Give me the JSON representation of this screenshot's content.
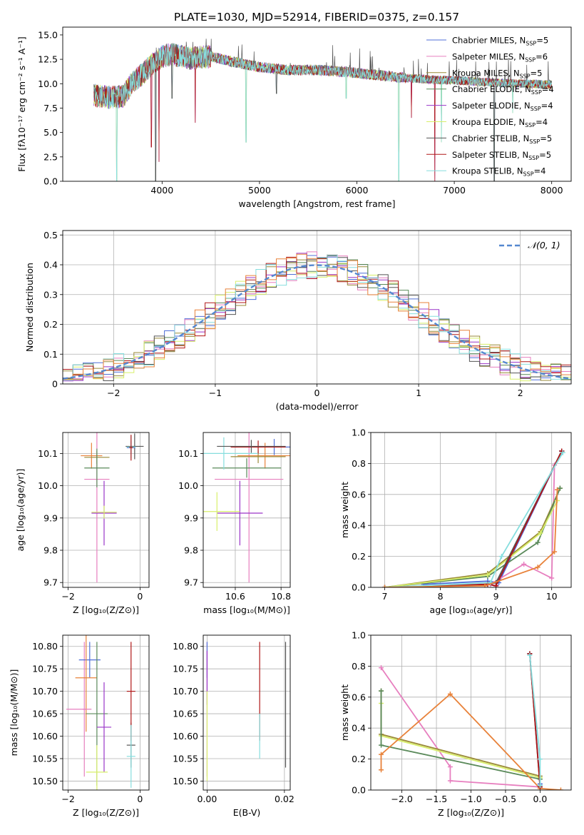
{
  "figure": {
    "title": "PLATE=1030, MJD=52914, FIBERID=0375, z=0.157",
    "colors": {
      "chabrier_miles": "#4f6fd8",
      "salpeter_miles": "#e77fbf",
      "kroupa_miles": "#9a8a38",
      "chabrier_elodie": "#5a8a5a",
      "salpeter_elodie": "#9a35c8",
      "kroupa_elodie": "#d8ef6a",
      "chabrier_stelib": "#555555",
      "salpeter_stelib": "#b01818",
      "kroupa_stelib": "#86dede",
      "orange": "#e8823a",
      "normal": "#5588d0"
    }
  },
  "chart_data": [
    {
      "id": "spectrum",
      "type": "line",
      "xlabel": "wavelength [Angstrom, rest frame]",
      "ylabel": "Flux [fλ10⁻¹⁷ erg cm⁻² s⁻¹ A⁻¹]",
      "xlim": [
        2980,
        8200
      ],
      "ylim": [
        0,
        15.8
      ],
      "xticks": [
        4000,
        5000,
        6000,
        7000,
        8000
      ],
      "yticks": [
        0.0,
        2.5,
        5.0,
        7.5,
        10.0,
        12.5,
        15.0
      ],
      "legend_position": "top-right",
      "anchors": [
        [
          3300,
          8.8
        ],
        [
          3450,
          8.6
        ],
        [
          3600,
          8.7
        ],
        [
          3700,
          10.2
        ],
        [
          3800,
          11.0
        ],
        [
          3900,
          12.0
        ],
        [
          4000,
          12.8
        ],
        [
          4100,
          13.0
        ],
        [
          4300,
          12.6
        ],
        [
          4500,
          12.8
        ],
        [
          4700,
          12.3
        ],
        [
          5000,
          11.7
        ],
        [
          5300,
          11.4
        ],
        [
          5600,
          11.4
        ],
        [
          5900,
          11.2
        ],
        [
          6200,
          10.9
        ],
        [
          6500,
          10.6
        ],
        [
          6800,
          10.4
        ],
        [
          7100,
          10.3
        ],
        [
          7400,
          10.1
        ],
        [
          7700,
          10.0
        ],
        [
          8000,
          9.9
        ]
      ],
      "series": [
        {
          "name": "Chabrier MILES, N$_{SSP}$=5",
          "label": "Chabrier MILES, N",
          "sub": "SSP",
          "suffix": "=5",
          "color_key": "chabrier_miles"
        },
        {
          "name": "Salpeter MILES, N$_{SSP}$=6",
          "label": "Salpeter MILES, N",
          "sub": "SSP",
          "suffix": "=6",
          "color_key": "salpeter_miles"
        },
        {
          "name": "Kroupa MILES, N$_{SSP}$=5",
          "label": "Kroupa MILES, N",
          "sub": "SSP",
          "suffix": "=5",
          "color_key": "kroupa_miles"
        },
        {
          "name": "Chabrier ELODIE, N$_{SSP}$=4",
          "label": "Chabrier ELODIE, N",
          "sub": "SSP",
          "suffix": "=4",
          "color_key": "chabrier_elodie"
        },
        {
          "name": "Salpeter ELODIE, N$_{SSP}$=4",
          "label": "Salpeter ELODIE, N",
          "sub": "SSP",
          "suffix": "=4",
          "color_key": "salpeter_elodie"
        },
        {
          "name": "Kroupa ELODIE, N$_{SSP}$=4",
          "label": "Kroupa ELODIE, N",
          "sub": "SSP",
          "suffix": "=4",
          "color_key": "kroupa_elodie"
        },
        {
          "name": "Chabrier STELIB, N$_{SSP}$=5",
          "label": "Chabrier STELIB, N",
          "sub": "SSP",
          "suffix": "=5",
          "color_key": "chabrier_stelib"
        },
        {
          "name": "Salpeter STELIB, N$_{SSP}$=5",
          "label": "Salpeter STELIB, N",
          "sub": "SSP",
          "suffix": "=5",
          "color_key": "salpeter_stelib"
        },
        {
          "name": "Kroupa STELIB, N$_{SSP}$=4",
          "label": "Kroupa STELIB, N",
          "sub": "SSP",
          "suffix": "=4",
          "color_key": "kroupa_stelib"
        }
      ],
      "dips": [
        [
          3535,
          0.0
        ],
        [
          3890,
          3.5
        ],
        [
          3933,
          0.0
        ],
        [
          3968,
          2.0
        ],
        [
          4101,
          8.5
        ],
        [
          4340,
          6.0
        ],
        [
          4861,
          4.0
        ],
        [
          5175,
          9.0
        ],
        [
          5890,
          8.5
        ],
        [
          6430,
          0.0
        ],
        [
          6560,
          6.5
        ],
        [
          6800,
          0.0
        ],
        [
          6868,
          4.0
        ],
        [
          7410,
          0.0
        ],
        [
          7600,
          7.0
        ]
      ]
    },
    {
      "id": "residuals",
      "type": "histogram",
      "xlabel": "(data-model)/error",
      "ylabel": "Normed distribution",
      "xlim": [
        -2.5,
        2.5
      ],
      "ylim": [
        0,
        0.515
      ],
      "xticks": [
        -2,
        -1,
        0,
        1,
        2
      ],
      "yticks": [
        0.0,
        0.1,
        0.2,
        0.3,
        0.4,
        0.5
      ],
      "bin_width": 0.1,
      "legend_label": "𝒩(0, 1)",
      "legend_position": "top-right",
      "series_colors": [
        "chabrier_miles",
        "salpeter_miles",
        "kroupa_miles",
        "chabrier_elodie",
        "salpeter_elodie",
        "kroupa_elodie",
        "chabrier_stelib",
        "salpeter_stelib",
        "kroupa_stelib",
        "orange"
      ],
      "reference_curve": "gaussian(0,1)"
    },
    {
      "id": "age-vs-Z",
      "type": "errorbar",
      "xlabel": "Z [log₁₀(Z/Z⊙)]",
      "ylabel": "age  [log₁₀(age/yr)]",
      "xlim": [
        -2.15,
        0.25
      ],
      "ylim": [
        9.685,
        10.165
      ],
      "xticks": [
        -2,
        0
      ],
      "yticks": [
        9.7,
        9.8,
        9.9,
        10.0,
        10.1
      ],
      "points": [
        {
          "x": -1.2,
          "xerr": 0.35,
          "y": 10.02,
          "yerr": 0.32,
          "color_key": "salpeter_miles"
        },
        {
          "x": -1.35,
          "xerr": 0.3,
          "y": 10.093,
          "yerr": 0.04,
          "color_key": "orange"
        },
        {
          "x": -1.2,
          "xerr": 0.35,
          "y": 10.088,
          "yerr": 0.02,
          "color_key": "kroupa_miles"
        },
        {
          "x": -1.2,
          "xerr": 0.35,
          "y": 10.055,
          "yerr": 0.06,
          "color_key": "chabrier_elodie"
        },
        {
          "x": -1.0,
          "xerr": 0.35,
          "y": 9.915,
          "yerr": 0.1,
          "color_key": "salpeter_elodie"
        },
        {
          "x": -1.0,
          "xerr": 0.35,
          "y": 9.918,
          "yerr": 0.02,
          "color_key": "kroupa_elodie"
        },
        {
          "x": -0.15,
          "xerr": 0.25,
          "y": 10.122,
          "yerr": 0.04,
          "color_key": "chabrier_stelib"
        },
        {
          "x": -0.25,
          "xerr": 0.12,
          "y": 10.118,
          "yerr": 0.02,
          "color_key": "chabrier_miles"
        },
        {
          "x": -0.25,
          "xerr": 0.12,
          "y": 10.12,
          "yerr": 0.035,
          "color_key": "kroupa_stelib"
        },
        {
          "x": -0.25,
          "xerr": 0.05,
          "y": 10.118,
          "yerr": 0.04,
          "color_key": "salpeter_stelib"
        }
      ]
    },
    {
      "id": "age-vs-mass",
      "type": "errorbar",
      "xlabel": "mass [log₁₀(M/M⊙)]",
      "ylabel": "",
      "xlim": [
        10.46,
        10.84
      ],
      "ylim": [
        9.685,
        10.165
      ],
      "xticks": [
        10.6,
        10.8
      ],
      "yticks": [
        9.7,
        9.8,
        9.9,
        10.0,
        10.1
      ],
      "points": [
        {
          "x": 10.66,
          "xerr": 0.15,
          "y": 10.02,
          "yerr": 0.32,
          "color_key": "salpeter_miles"
        },
        {
          "x": 10.77,
          "xerr": 0.12,
          "y": 10.12,
          "yerr": 0.025,
          "color_key": "chabrier_miles"
        },
        {
          "x": 10.73,
          "xerr": 0.12,
          "y": 10.093,
          "yerr": 0.04,
          "color_key": "orange"
        },
        {
          "x": 10.7,
          "xerr": 0.12,
          "y": 10.09,
          "yerr": 0.02,
          "color_key": "kroupa_miles"
        },
        {
          "x": 10.65,
          "xerr": 0.15,
          "y": 10.055,
          "yerr": 0.03,
          "color_key": "chabrier_elodie"
        },
        {
          "x": 10.62,
          "xerr": 0.1,
          "y": 9.915,
          "yerr": 0.1,
          "color_key": "salpeter_elodie"
        },
        {
          "x": 10.52,
          "xerr": 0.1,
          "y": 9.92,
          "yerr": 0.06,
          "color_key": "kroupa_elodie"
        },
        {
          "x": 10.55,
          "xerr": 0.15,
          "y": 10.1,
          "yerr": 0.05,
          "color_key": "kroupa_stelib"
        },
        {
          "x": 10.7,
          "xerr": 0.12,
          "y": 10.12,
          "yerr": 0.02,
          "color_key": "salpeter_stelib"
        },
        {
          "x": 10.67,
          "xerr": 0.15,
          "y": 10.122,
          "yerr": 0.02,
          "color_key": "chabrier_stelib"
        }
      ]
    },
    {
      "id": "massweight-vs-age",
      "type": "line",
      "xlabel": "age  [log₁₀(age/yr)]",
      "ylabel": "mass weight",
      "xlim": [
        6.75,
        10.35
      ],
      "ylim": [
        0,
        1.0
      ],
      "xticks": [
        7,
        8,
        9,
        10
      ],
      "yticks": [
        0.0,
        0.2,
        0.4,
        0.6,
        0.8,
        1.0
      ],
      "series": [
        {
          "color_key": "chabrier_miles",
          "x": [
            7.7,
            8.85,
            9.05,
            10.18
          ],
          "y": [
            0.02,
            0.04,
            0.03,
            0.88
          ]
        },
        {
          "color_key": "salpeter_miles",
          "x": [
            7.0,
            8.9,
            9.5,
            10.0,
            10.05
          ],
          "y": [
            0.0,
            0.02,
            0.15,
            0.06,
            0.79
          ]
        },
        {
          "color_key": "kroupa_miles",
          "x": [
            7.0,
            8.85,
            9.8,
            10.15
          ],
          "y": [
            0.0,
            0.09,
            0.36,
            0.64
          ]
        },
        {
          "color_key": "chabrier_elodie",
          "x": [
            7.0,
            8.85,
            9.75,
            10.15
          ],
          "y": [
            0.0,
            0.07,
            0.29,
            0.64
          ]
        },
        {
          "color_key": "salpeter_elodie",
          "x": [
            7.0,
            8.85,
            9.0,
            10.18
          ],
          "y": [
            0.0,
            0.02,
            0.01,
            0.88
          ]
        },
        {
          "color_key": "kroupa_elodie",
          "x": [
            7.0,
            8.85,
            9.8,
            10.1
          ],
          "y": [
            0.0,
            0.08,
            0.35,
            0.56
          ]
        },
        {
          "color_key": "chabrier_stelib",
          "x": [
            7.0,
            8.85,
            9.0,
            10.18
          ],
          "y": [
            0.0,
            0.02,
            0.03,
            0.88
          ]
        },
        {
          "color_key": "salpeter_stelib",
          "x": [
            7.0,
            8.85,
            9.0,
            10.18
          ],
          "y": [
            0.0,
            0.02,
            0.01,
            0.88
          ]
        },
        {
          "color_key": "kroupa_stelib",
          "x": [
            7.0,
            8.9,
            9.1,
            10.2
          ],
          "y": [
            0.0,
            0.03,
            0.2,
            0.87
          ]
        },
        {
          "color_key": "orange",
          "x": [
            7.0,
            8.8,
            9.75,
            10.05,
            10.1
          ],
          "y": [
            0.0,
            0.01,
            0.13,
            0.23,
            0.63
          ]
        }
      ]
    },
    {
      "id": "mass-vs-Z",
      "type": "errorbar",
      "xlabel": "Z [log₁₀(Z/Z⊙)]",
      "ylabel": "mass [log₁₀(M/M⊙)]",
      "xlim": [
        -2.15,
        0.25
      ],
      "ylim": [
        10.48,
        10.825
      ],
      "xticks": [
        -2,
        0
      ],
      "yticks": [
        10.5,
        10.55,
        10.6,
        10.65,
        10.7,
        10.75,
        10.8
      ],
      "points": [
        {
          "x": -1.55,
          "xerr": 0.05,
          "y": 10.66,
          "yerr": 0.15,
          "color_key": "salpeter_miles"
        },
        {
          "x": -1.4,
          "xerr": 0.3,
          "y": 10.77,
          "yerr": 0.04,
          "color_key": "chabrier_miles"
        },
        {
          "x": -1.5,
          "xerr": 0.3,
          "y": 10.73,
          "yerr": 0.12,
          "color_key": "orange"
        },
        {
          "x": -1.2,
          "xerr": 0.3,
          "y": 10.65,
          "yerr": 0.16,
          "color_key": "chabrier_elodie"
        },
        {
          "x": -1.0,
          "xerr": 0.2,
          "y": 10.62,
          "yerr": 0.1,
          "color_key": "salpeter_elodie"
        },
        {
          "x": -1.2,
          "xerr": 0.3,
          "y": 10.52,
          "yerr": 0.06,
          "color_key": "kroupa_elodie"
        },
        {
          "x": -1.7,
          "xerr": 0.35,
          "y": 10.66,
          "yerr": 0.0,
          "color_key": "salpeter_miles"
        },
        {
          "x": -0.25,
          "xerr": 0.12,
          "y": 10.58,
          "yerr": 0.05,
          "color_key": "chabrier_stelib"
        },
        {
          "x": -0.25,
          "xerr": 0.12,
          "y": 10.7,
          "yerr": 0.11,
          "color_key": "salpeter_stelib"
        },
        {
          "x": -0.25,
          "xerr": 0.12,
          "y": 10.555,
          "yerr": 0.07,
          "color_key": "kroupa_stelib"
        }
      ]
    },
    {
      "id": "mass-vs-ebv",
      "type": "errorbar",
      "xlabel": "E(B-V)",
      "ylabel": "",
      "xlim": [
        -0.001,
        0.0215
      ],
      "ylim": [
        10.48,
        10.825
      ],
      "xticks": [
        0.0,
        0.02
      ],
      "yticks": [
        10.5,
        10.55,
        10.6,
        10.65,
        10.7,
        10.75,
        10.8
      ],
      "points": [
        {
          "x": 0.0,
          "xerr": 0,
          "y": 10.66,
          "yerr": 0.15,
          "color_key": "salpeter_miles"
        },
        {
          "x": 0.0,
          "xerr": 0,
          "y": 10.77,
          "yerr": 0.04,
          "color_key": "chabrier_miles"
        },
        {
          "x": 0.0,
          "xerr": 0,
          "y": 10.73,
          "yerr": 0.06,
          "color_key": "salpeter_elodie"
        },
        {
          "x": 0.0,
          "xerr": 0,
          "y": 10.6,
          "yerr": 0.1,
          "color_key": "kroupa_elodie"
        },
        {
          "x": 0.0136,
          "xerr": 0,
          "y": 10.7,
          "yerr": 0.11,
          "color_key": "salpeter_stelib"
        },
        {
          "x": 0.0136,
          "xerr": 0,
          "y": 10.6,
          "yerr": 0.05,
          "color_key": "kroupa_stelib"
        },
        {
          "x": 0.0203,
          "xerr": 0,
          "y": 10.67,
          "yerr": 0.14,
          "color_key": "chabrier_stelib"
        }
      ]
    },
    {
      "id": "massweight-vs-Z",
      "type": "line",
      "xlabel": "Z [log₁₀(Z/Z⊙)]",
      "ylabel": "mass weight",
      "xlim": [
        -2.45,
        0.45
      ],
      "ylim": [
        0,
        1.0
      ],
      "xticks": [
        -2.0,
        -1.5,
        -1.0,
        -0.5,
        0.0
      ],
      "tick_labels": [
        "−2.0",
        "−1.5",
        "−1.0",
        "−0.5",
        "0.0"
      ],
      "yticks": [
        0.0,
        0.2,
        0.4,
        0.6,
        0.8,
        1.0
      ],
      "series": [
        {
          "color_key": "salpeter_miles",
          "x": [
            -2.3,
            -1.3,
            -1.3,
            0.0
          ],
          "y": [
            0.79,
            0.15,
            0.06,
            0.02
          ]
        },
        {
          "color_key": "kroupa_elodie",
          "x": [
            -2.3,
            -2.3,
            0.0
          ],
          "y": [
            0.56,
            0.35,
            0.08
          ]
        },
        {
          "color_key": "kroupa_miles",
          "x": [
            -2.3,
            -2.3,
            0.0
          ],
          "y": [
            0.64,
            0.36,
            0.09
          ]
        },
        {
          "color_key": "chabrier_elodie",
          "x": [
            -2.3,
            -2.3,
            0.0
          ],
          "y": [
            0.64,
            0.29,
            0.07
          ]
        },
        {
          "color_key": "orange",
          "x": [
            -2.3,
            -2.3,
            -1.3,
            0.0,
            0.3
          ],
          "y": [
            0.13,
            0.23,
            0.62,
            0.01,
            0.0
          ]
        },
        {
          "color_key": "chabrier_miles",
          "x": [
            -0.15,
            0.0,
            0.0
          ],
          "y": [
            0.88,
            0.04,
            0.03
          ]
        },
        {
          "color_key": "chabrier_stelib",
          "x": [
            -0.15,
            0.0
          ],
          "y": [
            0.88,
            0.02
          ]
        },
        {
          "color_key": "salpeter_stelib",
          "x": [
            -0.15,
            0.0
          ],
          "y": [
            0.88,
            0.02
          ]
        },
        {
          "color_key": "kroupa_stelib",
          "x": [
            -0.15,
            0.0,
            0.0
          ],
          "y": [
            0.87,
            0.2,
            0.03
          ]
        }
      ]
    }
  ]
}
